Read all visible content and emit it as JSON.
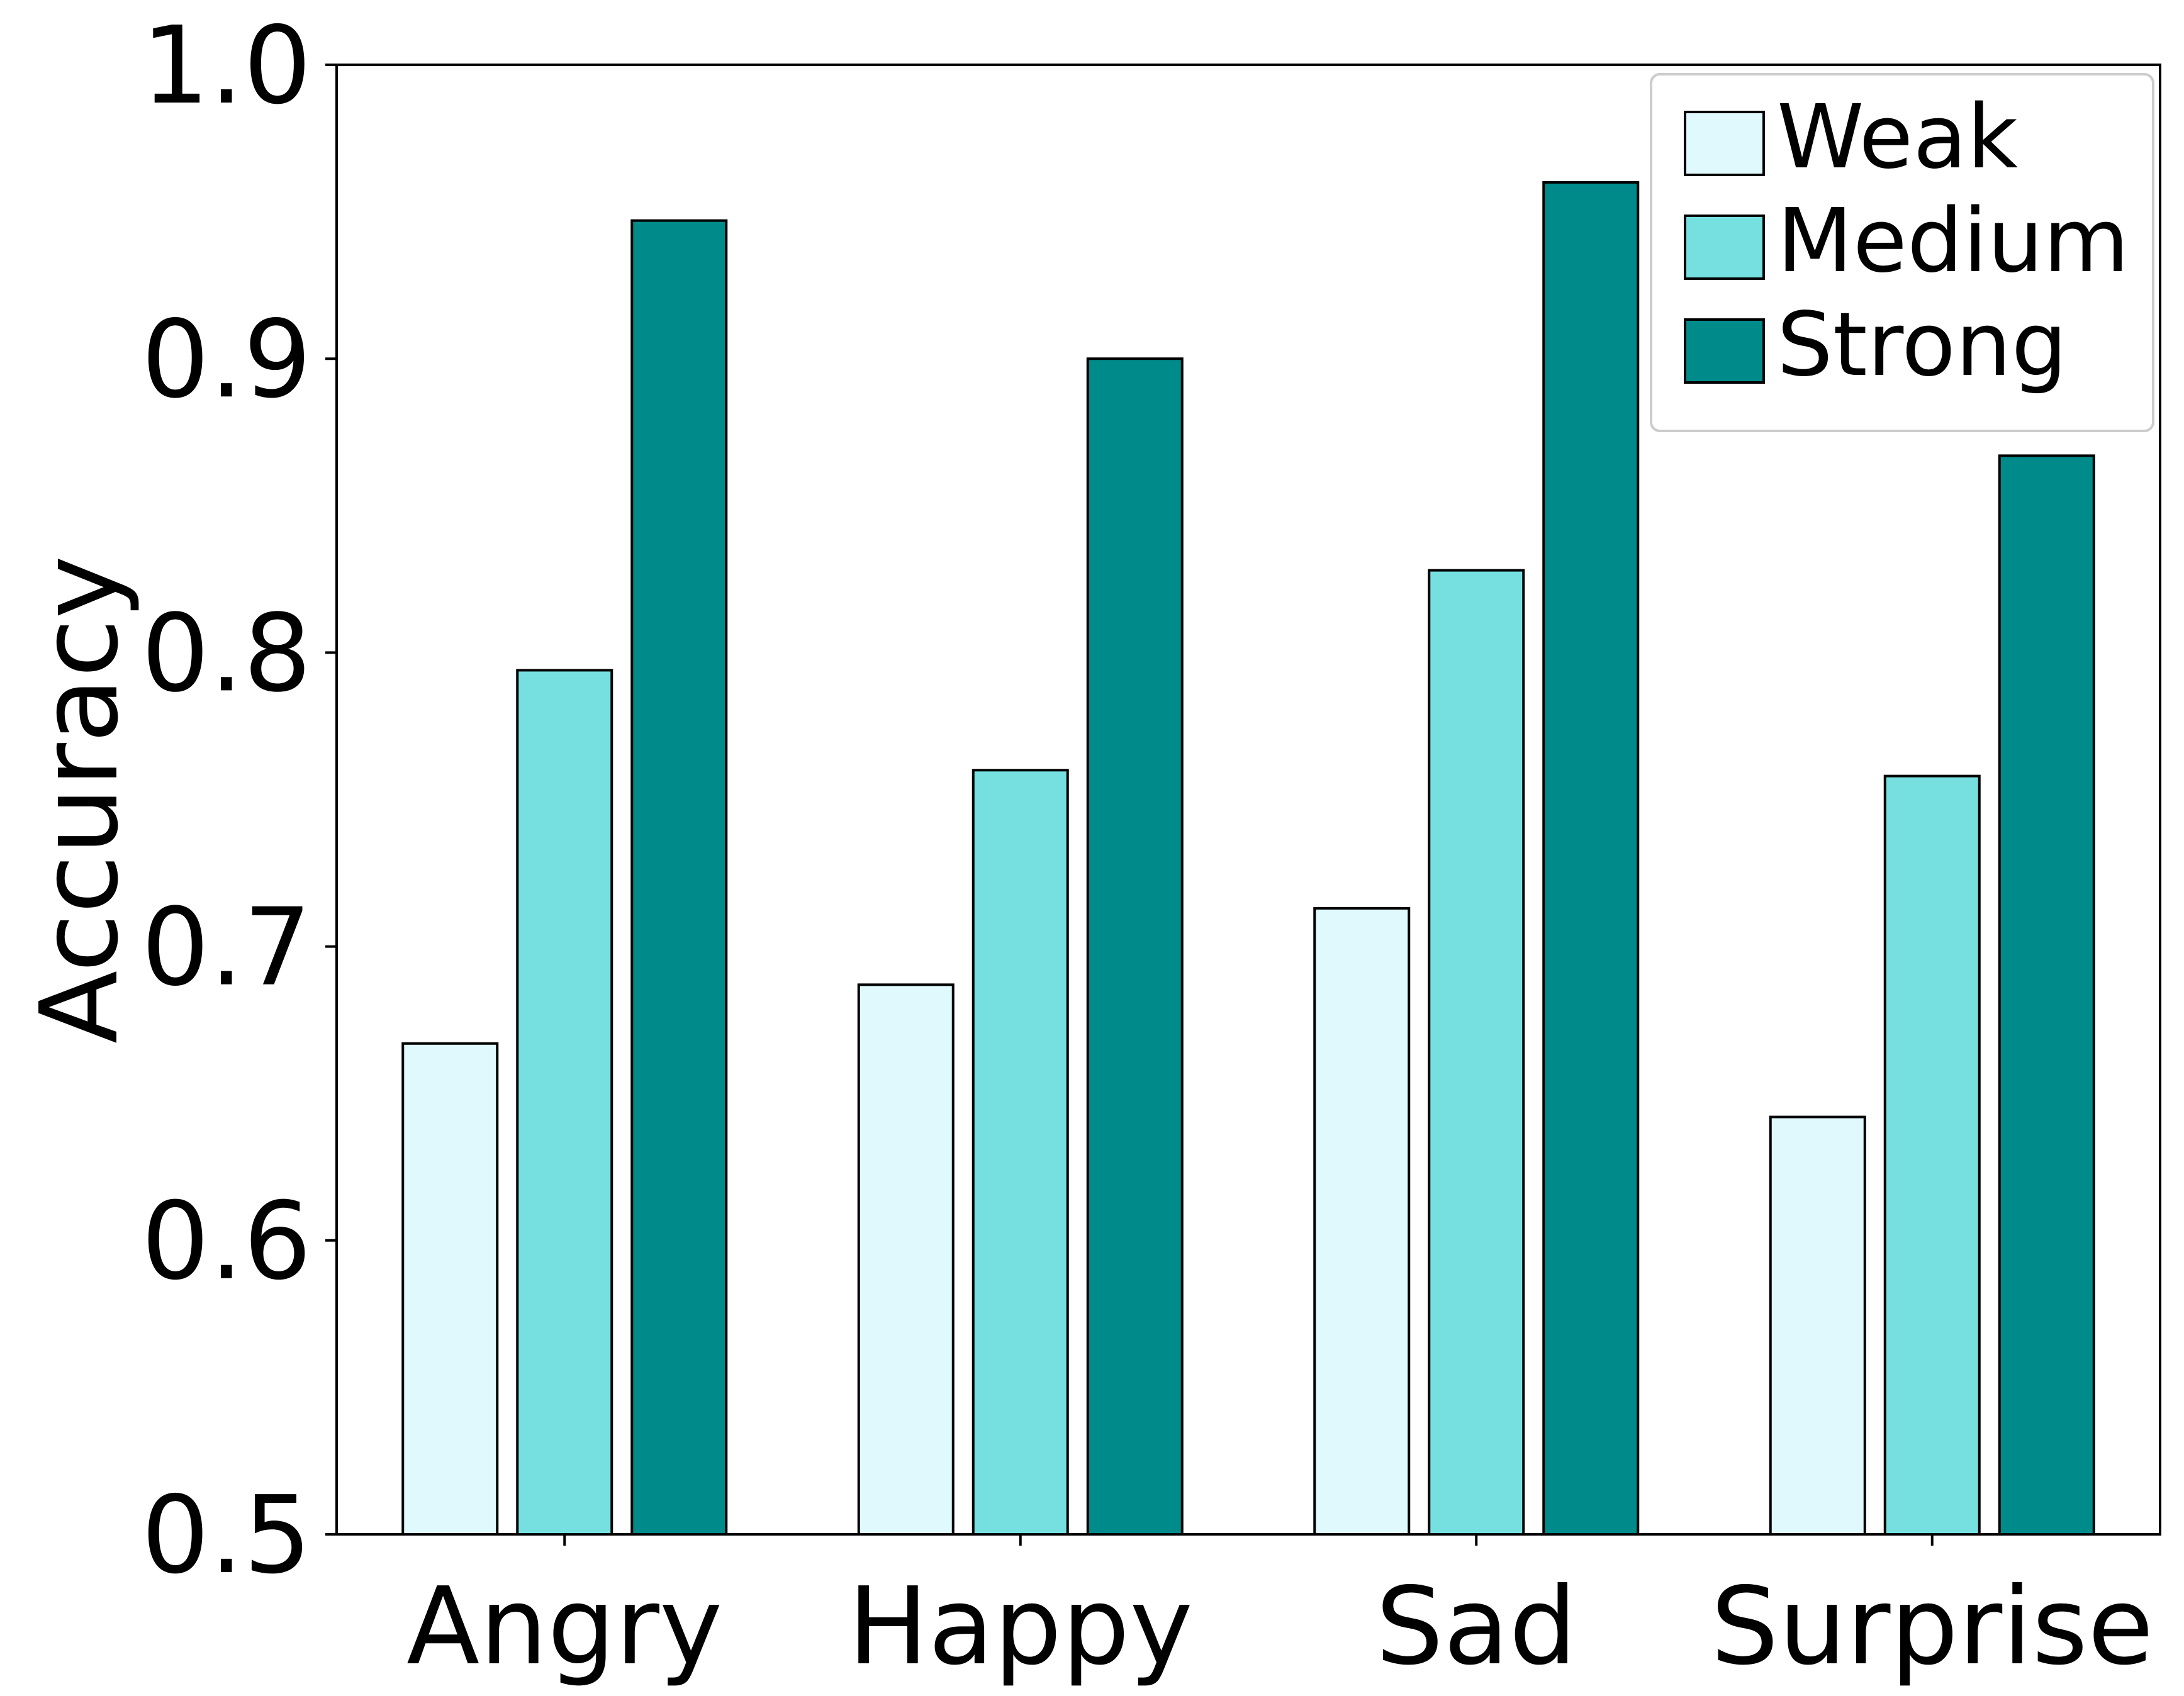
{
  "chart_data": {
    "type": "bar",
    "categories": [
      "Angry",
      "Happy",
      "Sad",
      "Surprise"
    ],
    "series": [
      {
        "name": "Weak",
        "values": [
          0.667,
          0.687,
          0.713,
          0.642
        ],
        "color": "#e0f9fc"
      },
      {
        "name": "Medium",
        "values": [
          0.794,
          0.76,
          0.828,
          0.758
        ],
        "color": "#76e0e0"
      },
      {
        "name": "Strong",
        "values": [
          0.947,
          0.9,
          0.96,
          0.867
        ],
        "color": "#008b8b"
      }
    ],
    "title": "",
    "xlabel": "",
    "ylabel": "Accuracy",
    "ylim": [
      0.5,
      1.0
    ],
    "yticks": [
      "0.5",
      "0.6",
      "0.7",
      "0.8",
      "0.9",
      "1.0"
    ],
    "grid": false,
    "legend_position": "top-right",
    "edge_color": "#000000"
  }
}
